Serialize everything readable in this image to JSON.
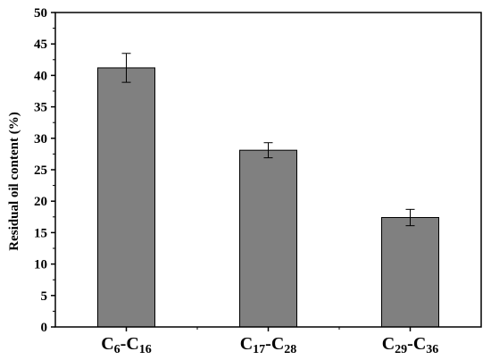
{
  "chart_data": {
    "type": "bar",
    "categories": [
      {
        "main": "C",
        "sub1": "6",
        "sep": "-C",
        "sub2": "16"
      },
      {
        "main": "C",
        "sub1": "17",
        "sep": "-C",
        "sub2": "28"
      },
      {
        "main": "C",
        "sub1": "29",
        "sep": "-C",
        "sub2": "36"
      }
    ],
    "values": [
      41.2,
      28.1,
      17.4
    ],
    "errors": [
      2.3,
      1.2,
      1.3
    ],
    "title": "",
    "xlabel": "",
    "ylabel": "Residual oil content (%)",
    "ylim": [
      0,
      50
    ],
    "yticks": [
      0,
      5,
      10,
      15,
      20,
      25,
      30,
      35,
      40,
      45,
      50
    ],
    "ytick_labels": [
      "0",
      "5",
      "10",
      "15",
      "20",
      "25",
      "30",
      "35",
      "40",
      "45",
      "50"
    ],
    "grid": false,
    "legend": "none",
    "bar_color": "#808080",
    "bar_edge_color": "#000000"
  }
}
